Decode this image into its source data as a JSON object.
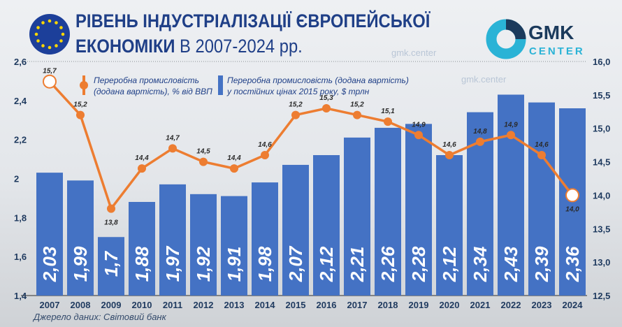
{
  "header": {
    "title_line1": "РІВЕНЬ ІНДУСТРІАЛІЗАЦІЇ ЄВРОПЕЙСЬКОЇ",
    "title_line2_bold": "ЕКОНОМІКИ",
    "title_line2_rest": " В 2007-2024 рр."
  },
  "logo": {
    "text_main": "GMK",
    "text_sub": "CENTER"
  },
  "watermark": "gmk.center",
  "source": "Джерело даних:  Світовий банк",
  "colors": {
    "bar": "#4472c4",
    "line": "#ed7d31",
    "title": "#1f3f87",
    "axis_text": "#1f3a5f"
  },
  "chart_data": {
    "type": "bar+line",
    "categories": [
      "2007",
      "2008",
      "2009",
      "2010",
      "2011",
      "2012",
      "2013",
      "2014",
      "2015",
      "2016",
      "2017",
      "2018",
      "2019",
      "2020",
      "2021",
      "2022",
      "2023",
      "2024"
    ],
    "series": [
      {
        "name": "Переробна промисловість (додана вартість) у постійних цінах  2015 року, $ трлн",
        "type": "bar",
        "axis": "left",
        "values": [
          2.03,
          1.99,
          1.7,
          1.88,
          1.97,
          1.92,
          1.91,
          1.98,
          2.07,
          2.12,
          2.21,
          2.26,
          2.28,
          2.12,
          2.34,
          2.43,
          2.39,
          2.36
        ],
        "labels": [
          "2,03",
          "1,99",
          "1,7",
          "1,88",
          "1,97",
          "1,92",
          "1,91",
          "1,98",
          "2,07",
          "2,12",
          "2,21",
          "2,26",
          "2,28",
          "2,12",
          "2,34",
          "2,43",
          "2,39",
          "2,36"
        ]
      },
      {
        "name": "Переробна промисловість (додана вартість), % від ВВП",
        "type": "line",
        "axis": "right",
        "values": [
          15.7,
          15.2,
          13.8,
          14.4,
          14.7,
          14.5,
          14.4,
          14.6,
          15.2,
          15.3,
          15.2,
          15.1,
          14.9,
          14.6,
          14.8,
          14.9,
          14.6,
          14.0
        ],
        "labels": [
          "15,7",
          "15,2",
          "13,8",
          "14,4",
          "14,7",
          "14,5",
          "14,4",
          "14,6",
          "15,2",
          "15,3",
          "15,2",
          "15,1",
          "14,9",
          "14,6",
          "14,8",
          "14,9",
          "14,6",
          "14,0"
        ]
      }
    ],
    "legend": {
      "line_line1": "Переробна промисловість",
      "line_line2": "(додана вартість), % від ВВП",
      "bar_line1": "Переробна промисловість (додана вартість)",
      "bar_line2": "у постійних цінах  2015 року, $ трлн"
    },
    "left_axis": {
      "range": [
        1.4,
        2.6
      ],
      "ticks": [
        1.4,
        1.6,
        1.8,
        2.0,
        2.2,
        2.4,
        2.6
      ],
      "tick_labels": [
        "1,4",
        "1,6",
        "1,8",
        "2",
        "2,2",
        "2,4",
        "2,6"
      ]
    },
    "right_axis": {
      "range": [
        12.5,
        16.0
      ],
      "ticks": [
        12.5,
        13,
        13.5,
        14,
        14.5,
        15,
        15.5,
        16
      ],
      "tick_labels": [
        "12,5",
        "13,0",
        "13,5",
        "14,0",
        "14,5",
        "15,0",
        "15,5",
        "16,0"
      ]
    },
    "grid": "dotted horizontal at top only"
  }
}
